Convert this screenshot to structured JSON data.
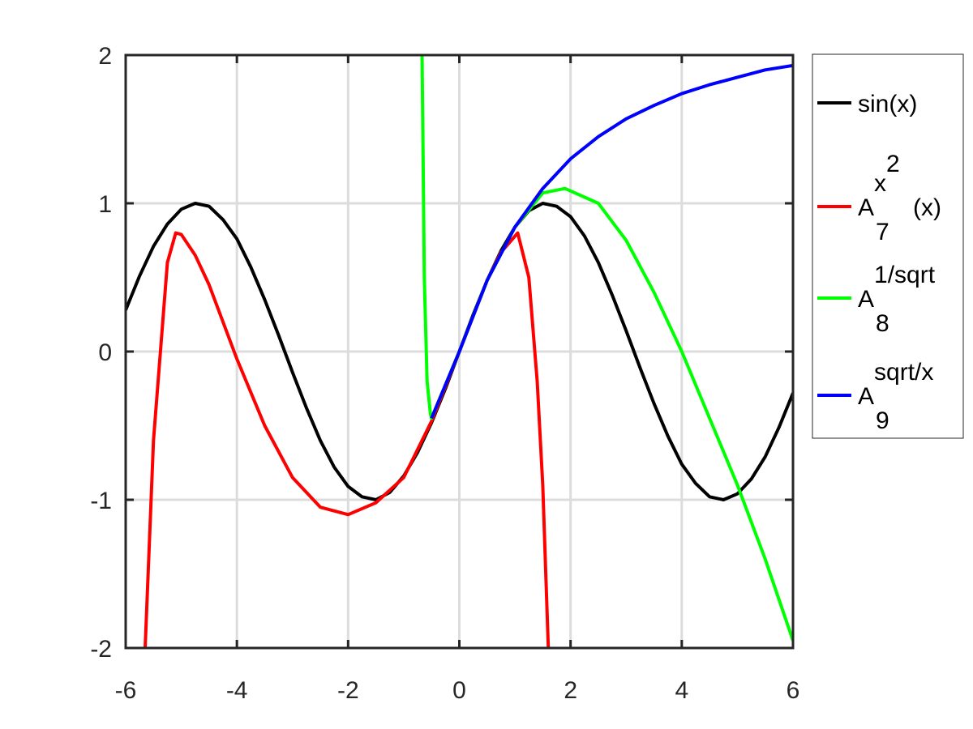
{
  "chart_data": {
    "type": "line",
    "xlim": [
      -6,
      6
    ],
    "ylim": [
      -2,
      2
    ],
    "xticks": [
      -6,
      -4,
      -2,
      0,
      2,
      4,
      6
    ],
    "yticks": [
      -2,
      -1,
      0,
      1,
      2
    ],
    "grid": true,
    "legend": "outside-right",
    "series": [
      {
        "name": "sin(x)",
        "color": "#000000",
        "x": [
          -6,
          -5.75,
          -5.5,
          -5.25,
          -5,
          -4.75,
          -4.5,
          -4.25,
          -4,
          -3.75,
          -3.5,
          -3.25,
          -3,
          -2.75,
          -2.5,
          -2.25,
          -2,
          -1.75,
          -1.5,
          -1.25,
          -1,
          -0.75,
          -0.5,
          -0.25,
          0,
          0.25,
          0.5,
          0.75,
          1,
          1.25,
          1.5,
          1.75,
          2,
          2.25,
          2.5,
          2.75,
          3,
          3.25,
          3.5,
          3.75,
          4,
          4.25,
          4.5,
          4.75,
          5,
          5.25,
          5.5,
          5.75,
          6
        ],
        "values": [
          0.28,
          0.51,
          0.71,
          0.86,
          0.96,
          1.0,
          0.98,
          0.89,
          0.76,
          0.57,
          0.35,
          0.11,
          -0.14,
          -0.38,
          -0.6,
          -0.78,
          -0.91,
          -0.98,
          -1.0,
          -0.95,
          -0.84,
          -0.68,
          -0.48,
          -0.25,
          0,
          0.25,
          0.48,
          0.68,
          0.84,
          0.95,
          1.0,
          0.98,
          0.91,
          0.78,
          0.6,
          0.38,
          0.14,
          -0.11,
          -0.35,
          -0.57,
          -0.76,
          -0.89,
          -0.98,
          -1.0,
          -0.96,
          -0.86,
          -0.71,
          -0.51,
          -0.28
        ]
      },
      {
        "name": "A",
        "sub": "7",
        "sup": "x",
        "sup_sup": "2",
        "tail": "(x)",
        "color": "#ff0000",
        "x": [
          -5.65,
          -5.5,
          -5.25,
          -5.1,
          -5,
          -4.75,
          -4.5,
          -4.25,
          -4,
          -3.5,
          -3,
          -2.5,
          -2,
          -1.5,
          -1,
          -0.5,
          0,
          0.5,
          0.75,
          1.05,
          1.25,
          1.4,
          1.5,
          1.6
        ],
        "values": [
          -2,
          -0.6,
          0.6,
          0.8,
          0.79,
          0.65,
          0.45,
          0.2,
          -0.05,
          -0.5,
          -0.85,
          -1.05,
          -1.1,
          -1.02,
          -0.85,
          -0.47,
          0,
          0.48,
          0.67,
          0.8,
          0.5,
          -0.2,
          -0.9,
          -2
        ]
      },
      {
        "name": "A",
        "sub": "8",
        "sup": "1/sqrt",
        "color": "#00ff00",
        "x": [
          -0.67,
          -0.63,
          -0.58,
          -0.52,
          -0.5,
          0,
          0.5,
          1,
          1.5,
          1.9,
          2.5,
          3,
          3.5,
          4,
          4.5,
          5,
          5.5,
          6
        ],
        "values": [
          2,
          0.5,
          -0.2,
          -0.42,
          -0.45,
          0,
          0.48,
          0.84,
          1.07,
          1.1,
          1.0,
          0.75,
          0.4,
          0.0,
          -0.45,
          -0.9,
          -1.4,
          -1.95
        ]
      },
      {
        "name": "A",
        "sub": "9",
        "sup": "sqrt/x",
        "color": "#0000ff",
        "x": [
          -0.5,
          0,
          0.5,
          1,
          1.5,
          2,
          2.5,
          3,
          3.5,
          4,
          4.5,
          5,
          5.5,
          6
        ],
        "values": [
          -0.45,
          0,
          0.48,
          0.84,
          1.1,
          1.3,
          1.45,
          1.57,
          1.66,
          1.74,
          1.8,
          1.85,
          1.9,
          1.93
        ]
      }
    ]
  }
}
